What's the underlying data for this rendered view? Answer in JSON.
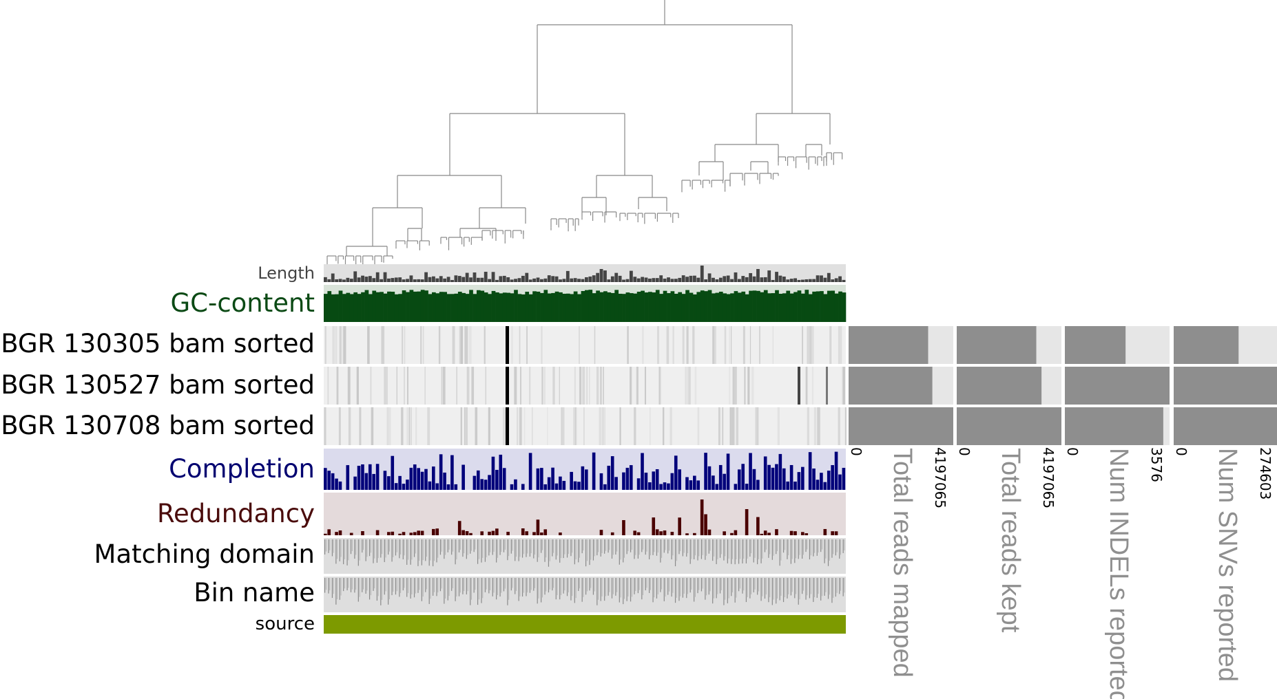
{
  "colors": {
    "panel_gray": "#e0e0e0",
    "tree_line": "#888888",
    "length_bar": "#444444",
    "gc_bar": "#074a12",
    "gc_bg": "#d9e3d9",
    "completion_bar": "#00007a",
    "completion_bg": "#dbdbed",
    "redundancy_bar": "#4a0000",
    "redundancy_bg": "#e4dadb",
    "heatmap_bg": "#efefef",
    "stat_bar": "#8e8e8e",
    "stat_bg": "#e6e6e6",
    "source_bar": "#7d9a00",
    "axis_title": "#8f8f8f"
  },
  "layers": {
    "length": "Length",
    "gc": "GC-content",
    "completion": "Completion",
    "redundancy": "Redundancy",
    "matching_domain": "Matching domain",
    "bin_name": "Bin name",
    "source": "source"
  },
  "samples": [
    "BGR 130305 bam sorted",
    "BGR 130527 bam sorted",
    "BGR 130708 bam sorted"
  ],
  "chart_data": {
    "type": "heatmap",
    "dendrogram": "top",
    "sample_stats": [
      {
        "title": "Total reads mapped",
        "min": "0",
        "max": "4197065",
        "fractions": [
          0.76,
          0.8,
          1.0
        ]
      },
      {
        "title": "Total reads kept",
        "min": "0",
        "max": "4197065",
        "fractions": [
          0.76,
          0.81,
          1.0
        ]
      },
      {
        "title": "Num INDELs reported",
        "min": "0",
        "max": "3576",
        "fractions": [
          0.58,
          1.0,
          0.94
        ]
      },
      {
        "title": "Num SNVs reported",
        "min": "0",
        "max": "274603",
        "fractions": [
          0.62,
          1.0,
          1.0
        ]
      }
    ]
  }
}
